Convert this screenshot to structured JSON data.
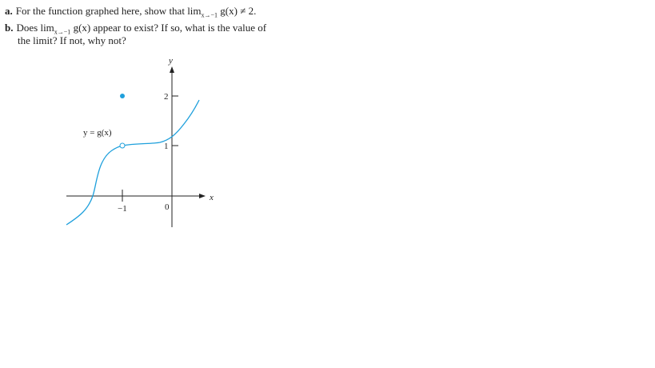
{
  "problems": [
    {
      "label": "a.",
      "text_before": "For the function graphed here, show that lim",
      "subscript": "x→−1",
      "text_after": "g(x) ≠ 2."
    },
    {
      "label": "b.",
      "text_before": "Does lim",
      "subscript": "x→−1",
      "text_after": "g(x) appear to exist? If so, what is the value of",
      "continuation": "the limit? If not, why not?"
    }
  ],
  "figure": {
    "curve_label": "y = g(x)",
    "x_axis_label": "x",
    "y_axis_label": "y",
    "tick_labels": {
      "y2": "2",
      "y1": "1",
      "xneg1": "−1",
      "origin": "0"
    }
  }
}
